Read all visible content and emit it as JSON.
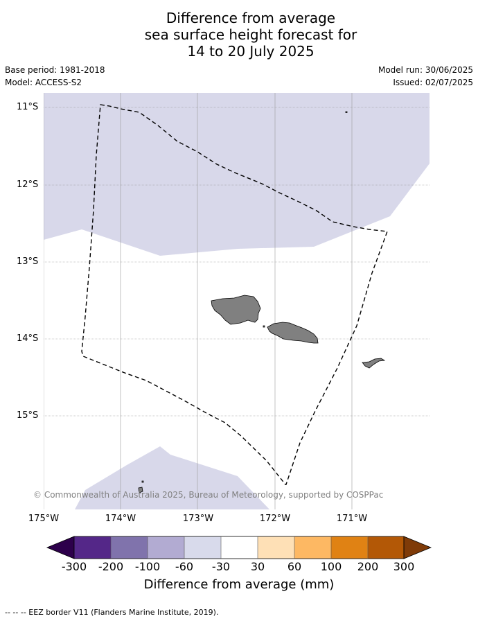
{
  "title_lines": [
    "Difference from average",
    "sea surface height forecast for",
    "14 to 20 July 2025"
  ],
  "meta": {
    "base_period": "Base period: 1981-2018",
    "model": "Model: ACCESS-S2",
    "model_run": "Model run: 30/06/2025",
    "issued": "Issued: 02/07/2025"
  },
  "map": {
    "lat_labels": [
      "11°S",
      "12°S",
      "13°S",
      "14°S",
      "15°S"
    ],
    "lon_labels": [
      "175°W",
      "174°W",
      "173°W",
      "172°W",
      "171°W"
    ],
    "copyright": "© Commonwealth of Australia 2025, Bureau of Meteorology, supported by COSPPac",
    "colors": {
      "anomaly_fill": "#d8d8ea",
      "land": "#808080",
      "grid": "#9a9a9a"
    }
  },
  "colorbar": {
    "ticks": [
      "-300",
      "-200",
      "-100",
      "-60",
      "-30",
      "30",
      "60",
      "100",
      "200",
      "300"
    ],
    "colors": [
      "#2d004b",
      "#542788",
      "#8073ac",
      "#b2abd2",
      "#d8daeb",
      "#ffffff",
      "#fee0b6",
      "#fdb863",
      "#e08214",
      "#b35806",
      "#7f3b08"
    ],
    "label": "Difference from average (mm)"
  },
  "footer": "--  --  -- EEZ border V11 (Flanders Marine Institute, 2019)."
}
